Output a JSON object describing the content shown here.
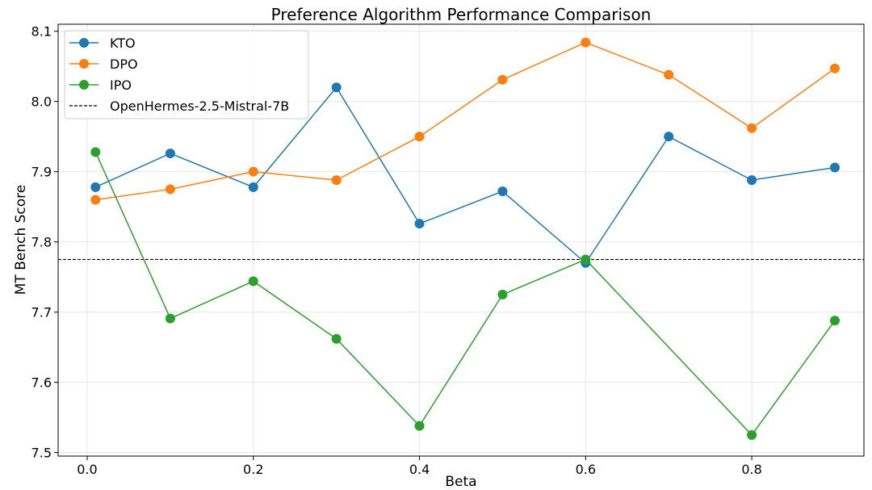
{
  "chart_data": {
    "type": "line",
    "title": "Preference Algorithm Performance Comparison",
    "xlabel": "Beta",
    "ylabel": "MT Bench Score",
    "xlim": [
      -0.035,
      0.935
    ],
    "ylim": [
      7.495,
      8.11
    ],
    "xticks": [
      0.0,
      0.2,
      0.4,
      0.6,
      0.8
    ],
    "xtick_labels": [
      "0.0",
      "0.2",
      "0.4",
      "0.6",
      "0.8"
    ],
    "yticks": [
      7.5,
      7.6,
      7.7,
      7.8,
      7.9,
      8.0,
      8.1
    ],
    "ytick_labels": [
      "7.5",
      "7.6",
      "7.7",
      "7.8",
      "7.9",
      "8.0",
      "8.1"
    ],
    "grid": true,
    "legend_position": "top-left",
    "x": [
      0.01,
      0.1,
      0.2,
      0.3,
      0.4,
      0.5,
      0.6,
      0.7,
      0.8,
      0.9
    ],
    "series": [
      {
        "name": "KTO",
        "color": "#1f77b4",
        "values": [
          7.878,
          7.926,
          7.878,
          8.02,
          7.826,
          7.872,
          7.77,
          7.95,
          7.888,
          7.906
        ]
      },
      {
        "name": "DPO",
        "color": "#ff7f0e",
        "values": [
          7.86,
          7.875,
          7.9,
          7.888,
          7.95,
          8.031,
          8.084,
          8.038,
          7.962,
          8.047
        ]
      },
      {
        "name": "IPO",
        "color": "#2ca02c",
        "values": [
          7.928,
          7.691,
          7.744,
          7.662,
          7.538,
          7.725,
          7.775,
          null,
          7.525,
          7.688
        ]
      }
    ],
    "reference_line": {
      "name": "OpenHermes-2.5-Mistral-7B",
      "y": 7.775,
      "color": "#000000",
      "style": "dashed"
    }
  }
}
